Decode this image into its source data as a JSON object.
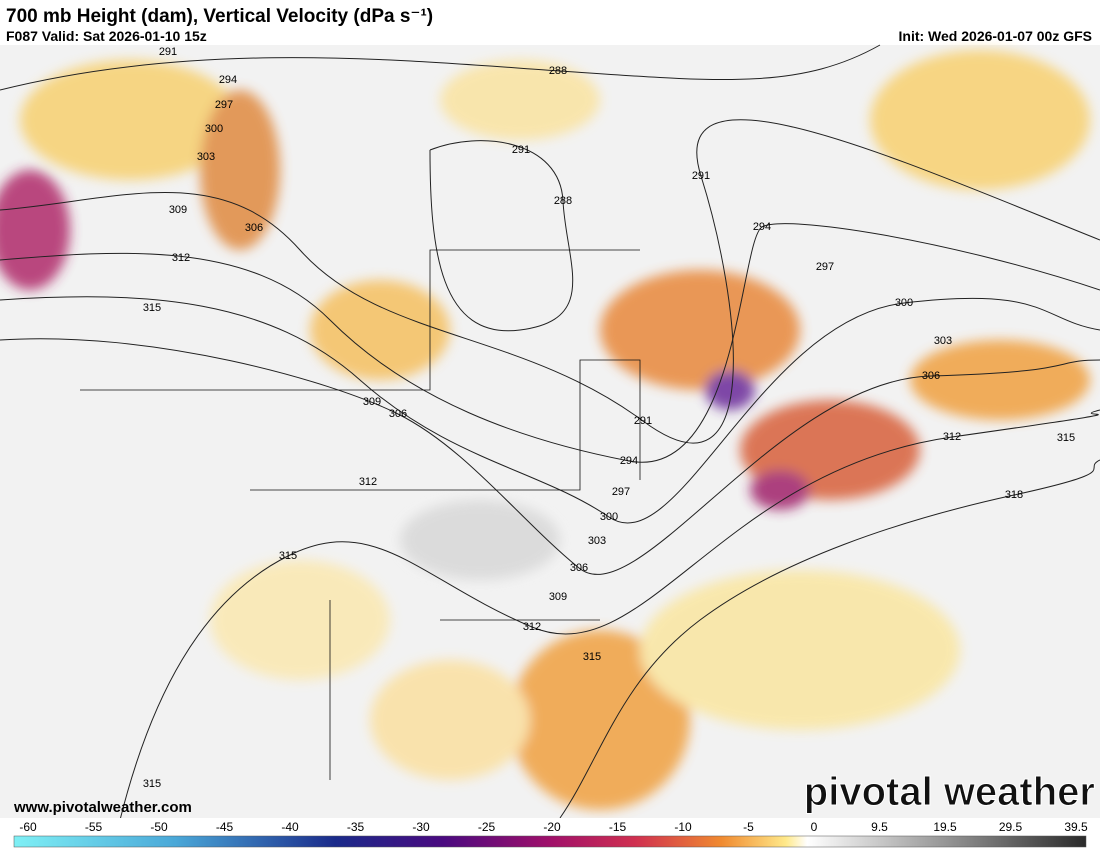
{
  "header": {
    "title": "700 mb Height (dam), Vertical Velocity (dPa s⁻¹)",
    "valid": "F087 Valid: Sat 2026-01-10 15z",
    "init": "Init: Wed 2026-01-07 00z GFS"
  },
  "map": {
    "contour_labels": [
      "291",
      "294",
      "297",
      "300",
      "303",
      "309",
      "306",
      "312",
      "315",
      "288",
      "291",
      "288",
      "291",
      "294",
      "297",
      "300",
      "303",
      "306",
      "312",
      "315",
      "318",
      "309",
      "306",
      "312",
      "315",
      "291",
      "294",
      "297",
      "300",
      "303",
      "306",
      "309",
      "312",
      "315",
      "315"
    ],
    "website": "www.pivotalweather.com",
    "logo": "pivotal weather"
  },
  "colorbar": {
    "labels": [
      "-60",
      "-55",
      "-50",
      "-45",
      "-40",
      "-35",
      "-30",
      "-25",
      "-20",
      "-15",
      "-10",
      "-5",
      "0",
      "9.5",
      "19.5",
      "29.5",
      "39.5"
    ]
  }
}
